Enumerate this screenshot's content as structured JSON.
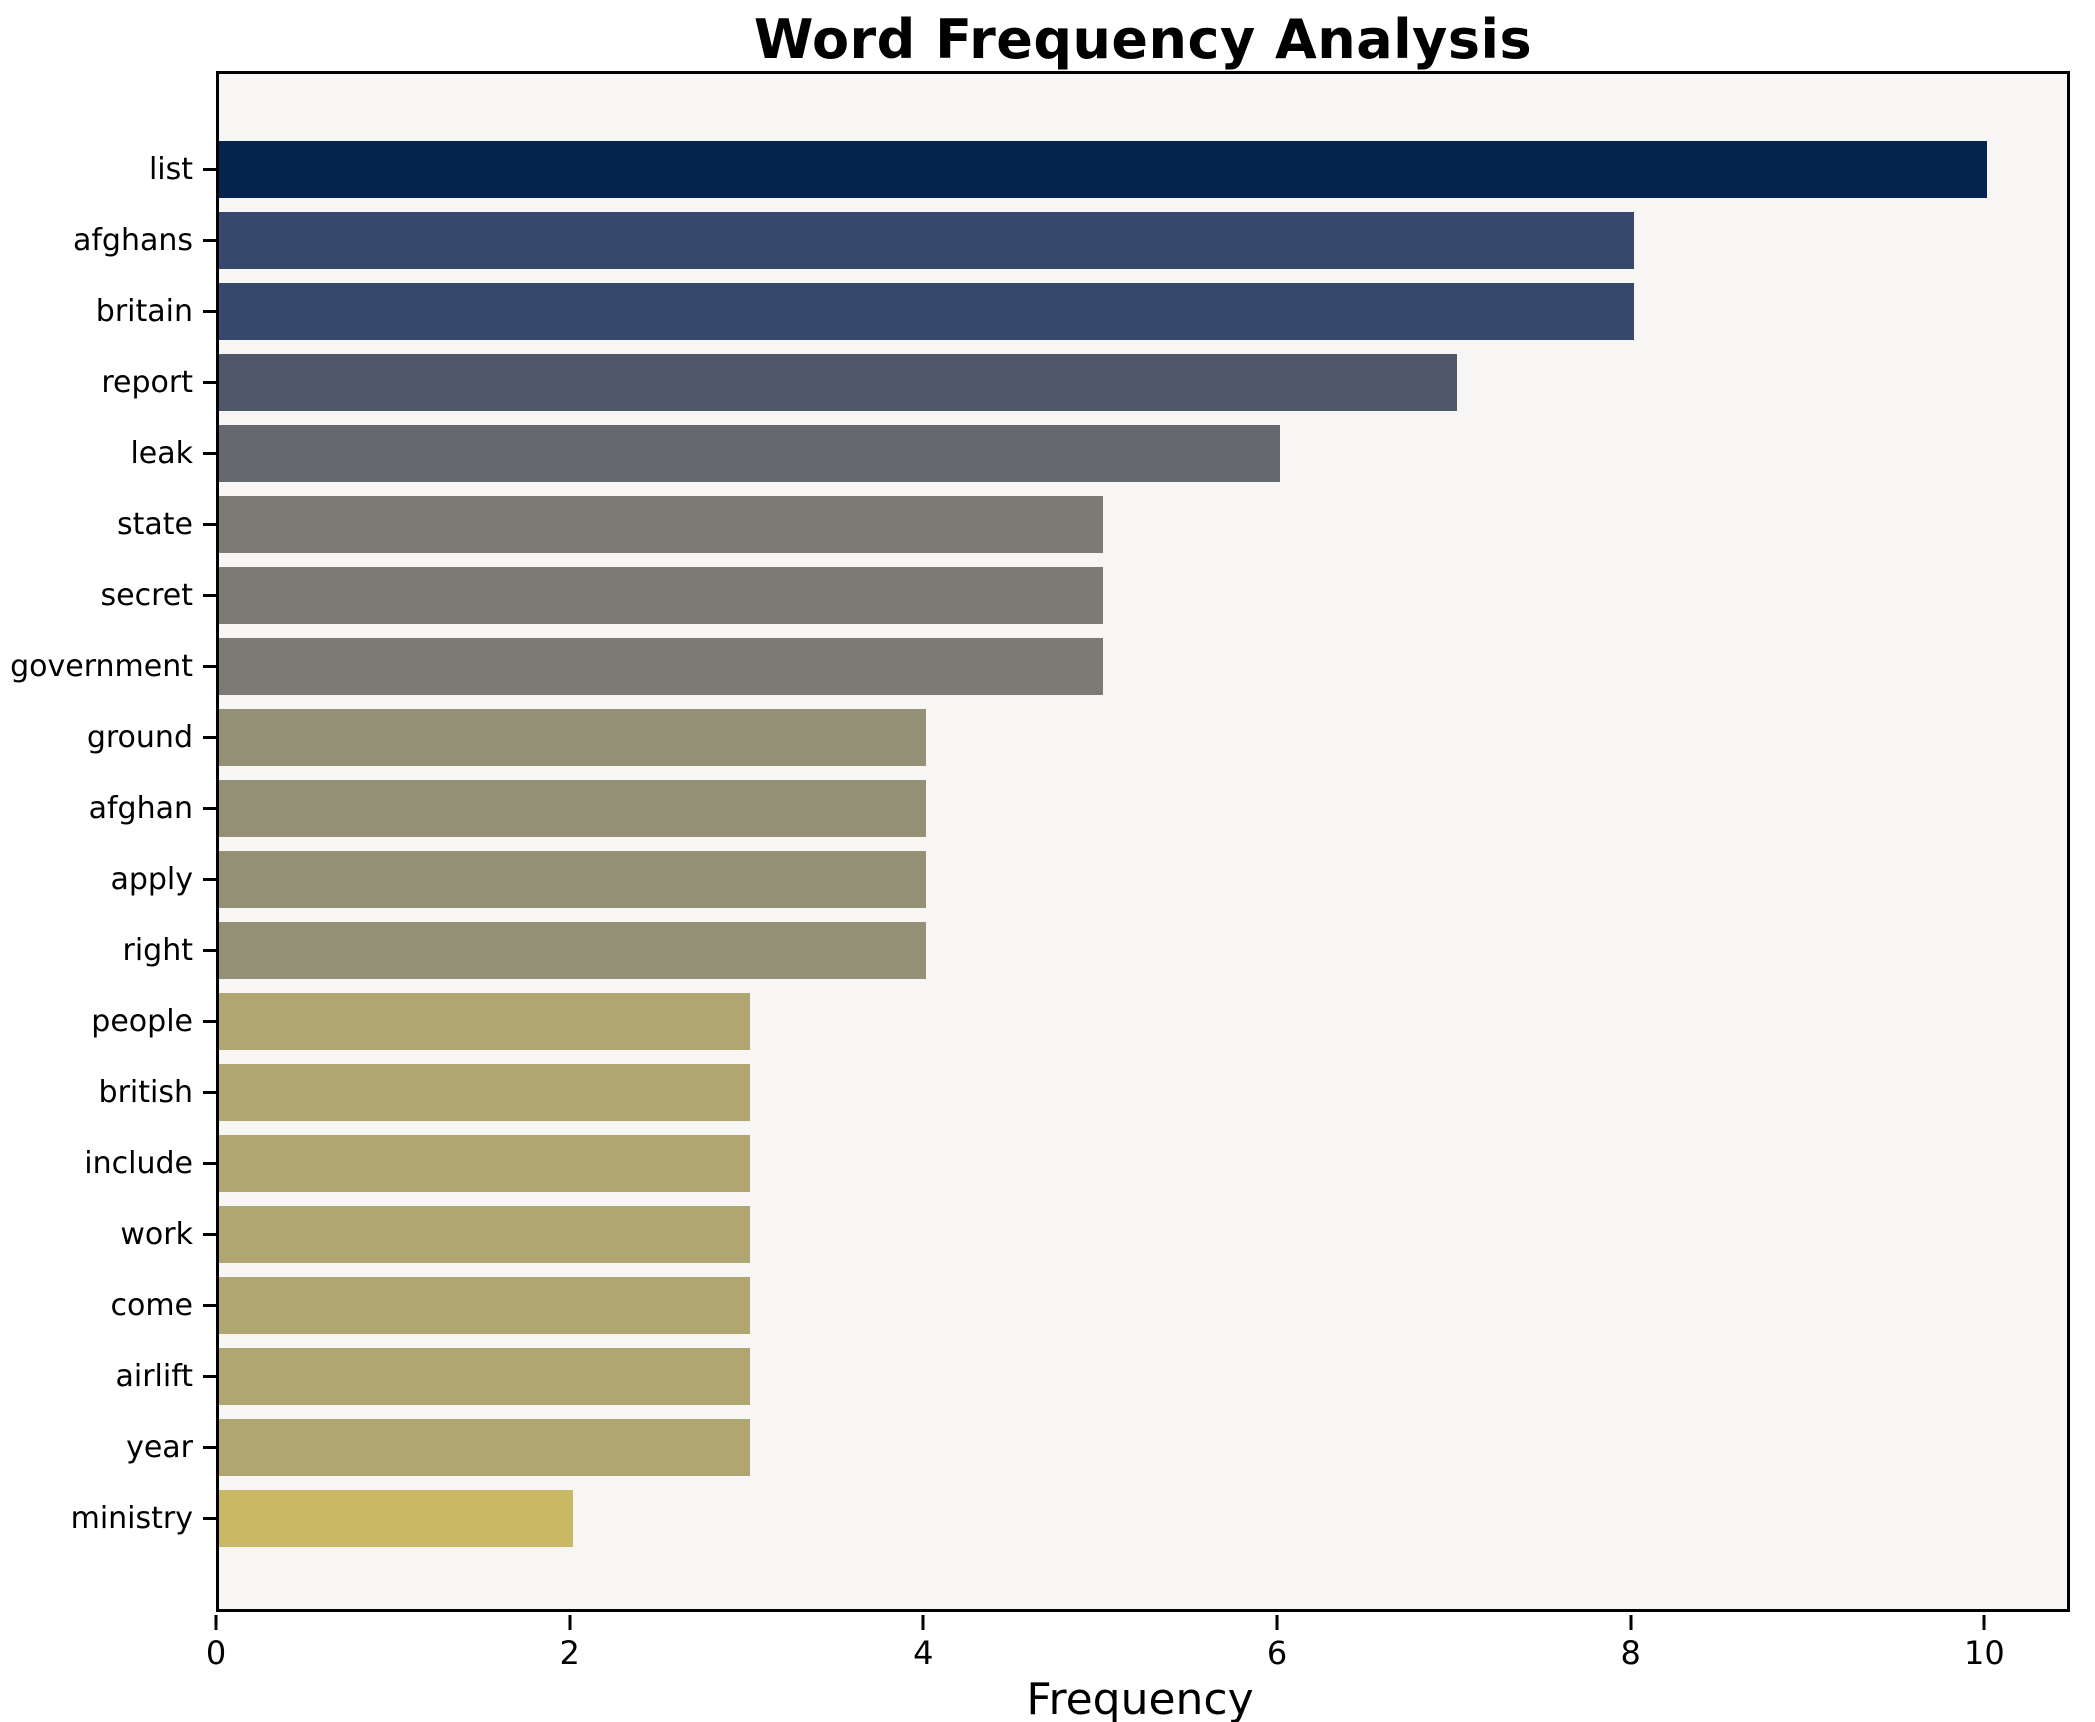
{
  "chart_data": {
    "type": "bar",
    "orientation": "horizontal",
    "title": "Word Frequency Analysis",
    "xlabel": "Frequency",
    "ylabel": "",
    "xlim": [
      0,
      10.45
    ],
    "xticks": [
      0,
      2,
      4,
      6,
      8,
      10
    ],
    "grid": false,
    "plot_background": "#f7f6f4",
    "frame_color": "#000000",
    "categories": [
      "list",
      "afghans",
      "britain",
      "report",
      "leak",
      "state",
      "secret",
      "government",
      "ground",
      "afghan",
      "apply",
      "right",
      "people",
      "british",
      "include",
      "work",
      "come",
      "airlift",
      "year",
      "ministry"
    ],
    "values": [
      10,
      8,
      8,
      7,
      6,
      5,
      5,
      5,
      4,
      4,
      4,
      4,
      3,
      3,
      3,
      3,
      3,
      3,
      3,
      2
    ],
    "bar_colors": [
      "#04234e",
      "#36496d",
      "#36496d",
      "#4e5869",
      "#65686f",
      "#7b7a75",
      "#7b7a75",
      "#7b7a75",
      "#949076",
      "#949076",
      "#949076",
      "#949076",
      "#b0a671",
      "#b0a671",
      "#b0a671",
      "#b0a671",
      "#b0a671",
      "#b0a671",
      "#b0a671",
      "#c9b964"
    ]
  }
}
